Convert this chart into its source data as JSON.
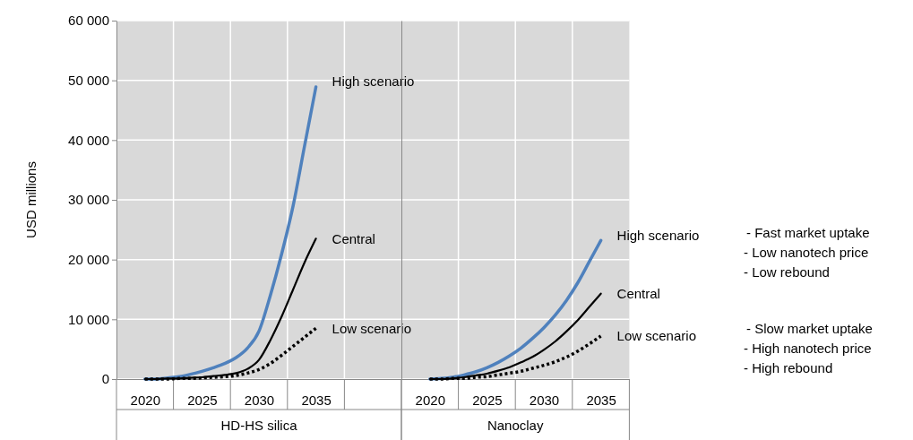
{
  "chart_data": [
    {
      "type": "line",
      "ylabel": "USD millions",
      "xlabel": "HD-HS silica",
      "grid": true,
      "x": [
        2020,
        2021,
        2022,
        2023,
        2024,
        2025,
        2026,
        2027,
        2028,
        2029,
        2030,
        2031,
        2032,
        2033,
        2034,
        2035
      ],
      "xlim": [
        2017.5,
        2042.5
      ],
      "xticks": [
        2020,
        {
          "value": 2022.5,
          "label": null
        },
        2025,
        {
          "value": 2027.5,
          "label": null
        },
        2030,
        {
          "value": 2032.5,
          "label": null
        },
        2035,
        {
          "value": 2037.5,
          "label": null
        }
      ],
      "ylim": [
        0,
        60000
      ],
      "yticks": [
        {
          "value": 0,
          "label": "0"
        },
        {
          "value": 10000,
          "label": "10 000"
        },
        {
          "value": 20000,
          "label": "20 000"
        },
        {
          "value": 30000,
          "label": "30 000"
        },
        {
          "value": 40000,
          "label": "40 000"
        },
        {
          "value": 50000,
          "label": "50 000"
        },
        {
          "value": 60000,
          "label": "60 000"
        }
      ],
      "series": [
        {
          "name": "High scenario",
          "color": "#4f81bd",
          "line_style": "solid",
          "values": [
            0,
            0,
            200,
            400,
            800,
            1300,
            1900,
            2600,
            3600,
            5200,
            8000,
            14000,
            21000,
            29000,
            39000,
            48900
          ]
        },
        {
          "name": "Central",
          "color": "#000000",
          "line_style": "solid",
          "values": [
            0,
            0,
            100,
            100,
            200,
            300,
            500,
            700,
            1000,
            1700,
            3200,
            6500,
            10500,
            15000,
            19500,
            23500
          ]
        },
        {
          "name": "Low scenario",
          "color": "#000000",
          "line_style": "dotted",
          "values": [
            0,
            0,
            0,
            100,
            100,
            200,
            300,
            400,
            600,
            1000,
            1600,
            2600,
            4000,
            5500,
            7000,
            8500
          ]
        }
      ]
    },
    {
      "type": "line",
      "xlabel": "Nanoclay",
      "grid": true,
      "tick_labels": "x",
      "x": [
        2020,
        2021,
        2022,
        2023,
        2024,
        2025,
        2026,
        2027,
        2028,
        2029,
        2030,
        2031,
        2032,
        2033,
        2034,
        2035
      ],
      "xlim": [
        2017.5,
        2037.5
      ],
      "xticks": [
        2020,
        {
          "value": 2022.5,
          "label": null
        },
        2025,
        {
          "value": 2027.5,
          "label": null
        },
        2030,
        {
          "value": 2032.5,
          "label": null
        },
        2035
      ],
      "ylim": [
        0,
        60000
      ],
      "yticks": [
        {
          "value": 0,
          "label": null
        },
        {
          "value": 10000,
          "label": null
        },
        {
          "value": 20000,
          "label": null
        },
        {
          "value": 30000,
          "label": null
        },
        {
          "value": 40000,
          "label": null
        },
        {
          "value": 50000,
          "label": null
        },
        {
          "value": 60000,
          "label": null
        }
      ],
      "annotations": [
        "- Fast market uptake\n- Low nanotech price\n- Low rebound",
        "- Slow market uptake\n- High nanotech price\n- High rebound"
      ],
      "series": [
        {
          "name": "High scenario",
          "color": "#4f81bd",
          "line_style": "solid",
          "values": [
            0,
            100,
            300,
            700,
            1200,
            1900,
            2800,
            3900,
            5200,
            6800,
            8600,
            10700,
            13200,
            16200,
            19700,
            23200
          ]
        },
        {
          "name": "Central",
          "color": "#000000",
          "line_style": "solid",
          "values": [
            0,
            0,
            100,
            300,
            600,
            900,
            1400,
            2000,
            2800,
            3700,
            4900,
            6300,
            8000,
            9900,
            12100,
            14300
          ]
        },
        {
          "name": "Low scenario",
          "color": "#000000",
          "line_style": "dotted",
          "values": [
            0,
            0,
            100,
            100,
            300,
            400,
            700,
            1000,
            1300,
            1800,
            2300,
            2900,
            3700,
            4700,
            5900,
            7200
          ]
        }
      ]
    }
  ]
}
